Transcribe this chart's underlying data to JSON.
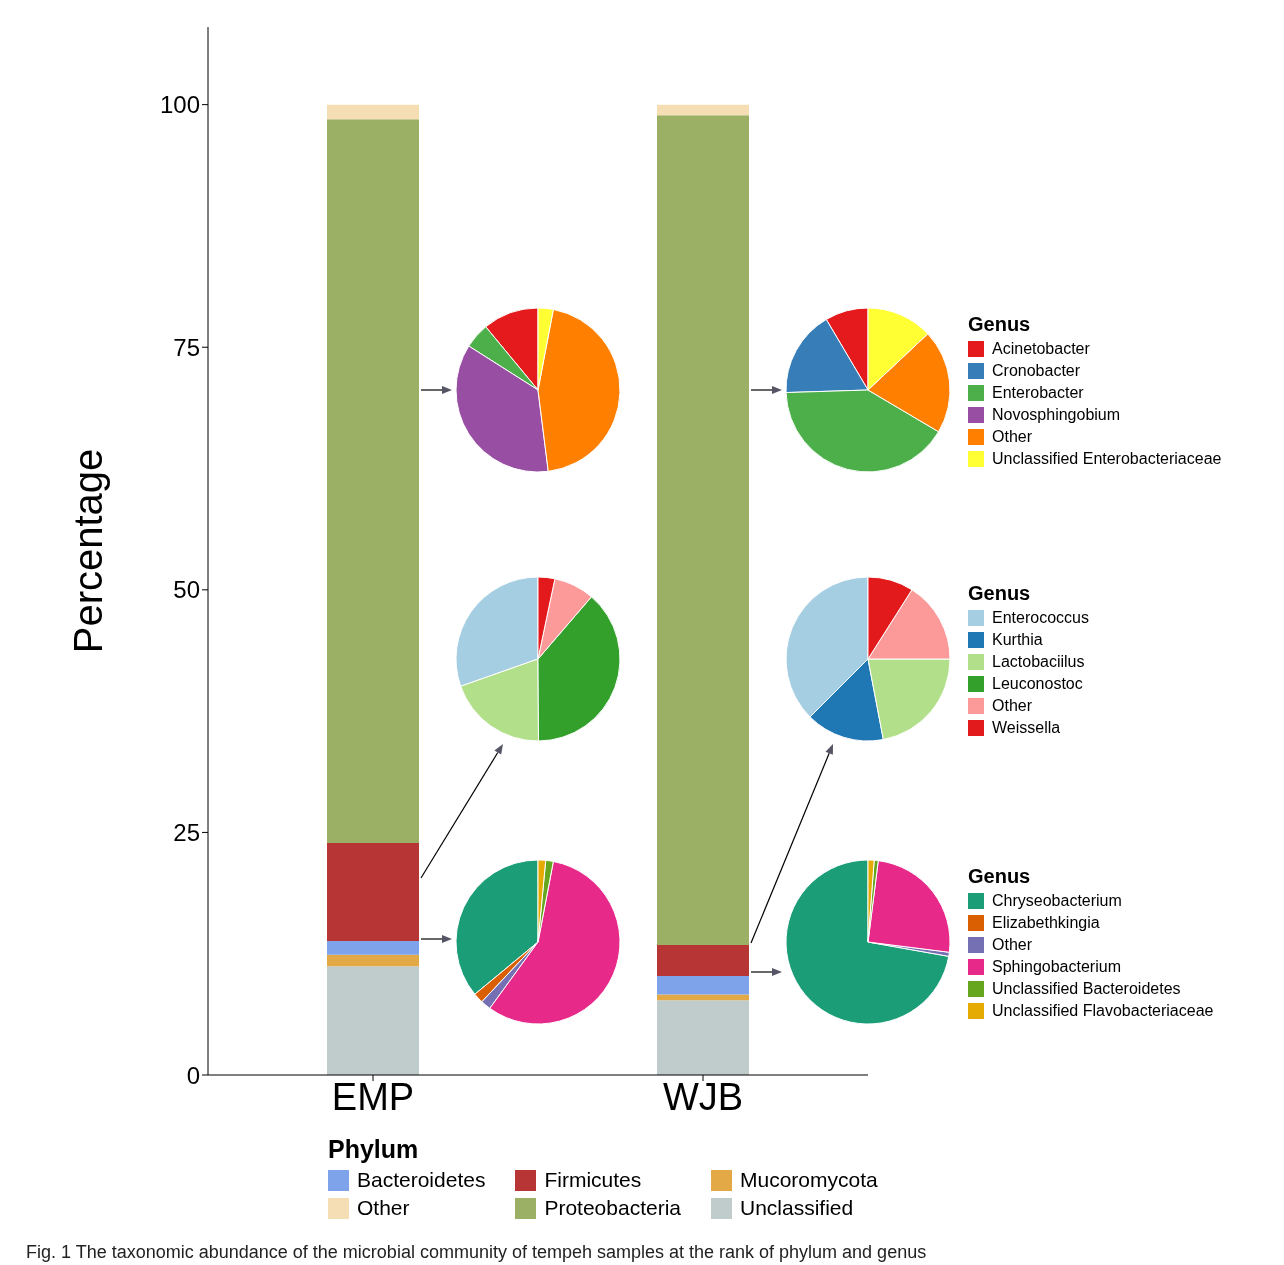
{
  "chart_data": [
    {
      "type": "bar",
      "stacked": true,
      "ylabel": "Percentage",
      "legend_title": "Phylum",
      "legend": "bottom",
      "categories": [
        "EMP",
        "WJB"
      ],
      "ylim": [
        0,
        108
      ],
      "yticks": [
        0,
        25,
        50,
        75,
        100
      ],
      "series": [
        {
          "name": "Unclassified",
          "color": "#bfcccb",
          "values": [
            11.2,
            7.7
          ]
        },
        {
          "name": "Mucoromycota",
          "color": "#e3a947",
          "values": [
            1.2,
            0.6
          ]
        },
        {
          "name": "Bacteroidetes",
          "color": "#7fa3ea",
          "values": [
            1.4,
            1.9
          ]
        },
        {
          "name": "Firmicutes",
          "color": "#b83535",
          "values": [
            10.1,
            3.2
          ]
        },
        {
          "name": "Proteobacteria",
          "color": "#9bb064",
          "values": [
            74.6,
            85.5
          ]
        },
        {
          "name": "Other",
          "color": "#f5deb3",
          "values": [
            1.5,
            1.1
          ]
        }
      ],
      "annotations": [
        "Fig. 1 The taxonomic abundance of the microbial community of tempeh samples at the rank of phylum and genus"
      ]
    },
    {
      "type": "pie",
      "categories": [
        null,
        null,
        null,
        null,
        null
      ],
      "values": [
        11,
        5,
        36,
        45,
        3
      ],
      "colors": [
        "#e41a1c",
        "#4daf4a",
        "#984ea3",
        "#ff7f00",
        "#ffff33"
      ]
    },
    {
      "type": "pie",
      "legend_title": "Genus",
      "legend": "right",
      "categories": [
        "Acinetobacter",
        "Cronobacter",
        "Enterobacter",
        "Novosphingobium",
        "Other",
        "Unclassified Enterobacteriaceae"
      ],
      "values": [
        8.5,
        17,
        41,
        0,
        20.5,
        13
      ],
      "colors": [
        "#e41a1c",
        "#377eb8",
        "#4daf4a",
        "#984ea3",
        "#ff7f00",
        "#ffff33"
      ]
    },
    {
      "type": "pie",
      "categories": [
        null,
        null,
        null,
        null,
        null
      ],
      "values": [
        30.4,
        19.7,
        38.6,
        8,
        3.3
      ],
      "colors": [
        "#a6cee3",
        "#b2df8a",
        "#33a02c",
        "#fb9a99",
        "#e31a1c"
      ]
    },
    {
      "type": "pie",
      "legend_title": "Genus",
      "legend": "right",
      "categories": [
        "Enterococcus",
        "Kurthia",
        "Lactobaciilus",
        "Leuconostoc",
        "Other",
        "Weissella"
      ],
      "values": [
        37.5,
        15.5,
        22,
        0,
        16,
        9
      ],
      "colors": [
        "#a6cee3",
        "#1f78b4",
        "#b2df8a",
        "#33a02c",
        "#fb9a99",
        "#e31a1c"
      ]
    },
    {
      "type": "pie",
      "categories": [
        null,
        null,
        null,
        null,
        null,
        null
      ],
      "values": [
        36,
        2,
        2,
        57,
        1.5,
        1.5
      ],
      "colors": [
        "#1b9e77",
        "#d95f02",
        "#7570b3",
        "#e7298a",
        "#66a61e",
        "#e6ab02"
      ]
    },
    {
      "type": "pie",
      "legend_title": "Genus",
      "legend": "right",
      "categories": [
        "Chryseobacterium",
        "Elizabethkingia",
        "Other",
        "Sphingobacterium",
        "Unclassified Bacteroidetes",
        "Unclassified Flavobacteriaceae"
      ],
      "values": [
        72.2,
        0,
        0.8,
        25,
        0.8,
        1.2
      ],
      "colors": [
        "#1b9e77",
        "#d95f02",
        "#7570b3",
        "#e7298a",
        "#66a61e",
        "#e6ab02"
      ]
    }
  ]
}
